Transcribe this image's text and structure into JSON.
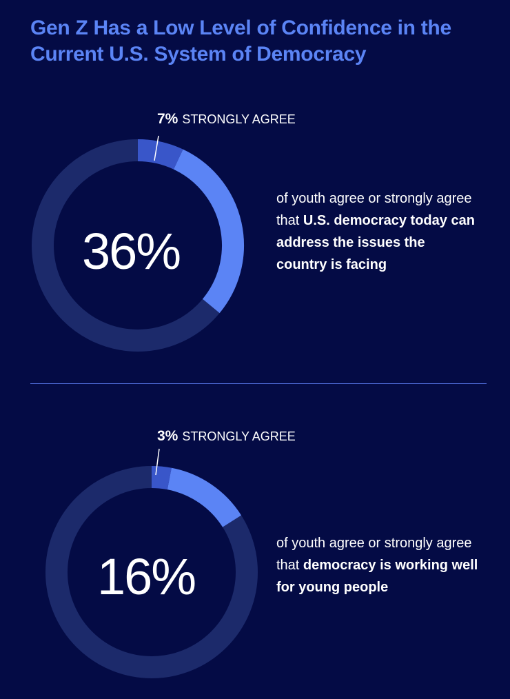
{
  "title": "Gen Z Has a Low Level of Confidence in the Current U.S. System of Democracy",
  "colors": {
    "background": "#040B45",
    "track": "#1C2A6B",
    "agree": "#5B84F5",
    "strongly_agree": "#3956C9",
    "title": "#5B84F5"
  },
  "chart_data": [
    {
      "type": "pie",
      "variant": "donut",
      "total_pct": 36,
      "strongly_agree_pct": 7,
      "big_label": "36%",
      "callout_pct": "7%",
      "callout_label": "STRONGLY AGREE",
      "desc_plain": "of youth agree or strongly agree  that ",
      "desc_bold": "U.S. democracy today can address the issues the country is facing"
    },
    {
      "type": "pie",
      "variant": "donut",
      "total_pct": 16,
      "strongly_agree_pct": 3,
      "big_label": "16%",
      "callout_pct": "3%",
      "callout_label": "STRONGLY AGREE",
      "desc_plain": "of youth agree or strongly agree that ",
      "desc_bold": "democracy is working well for young people"
    }
  ]
}
